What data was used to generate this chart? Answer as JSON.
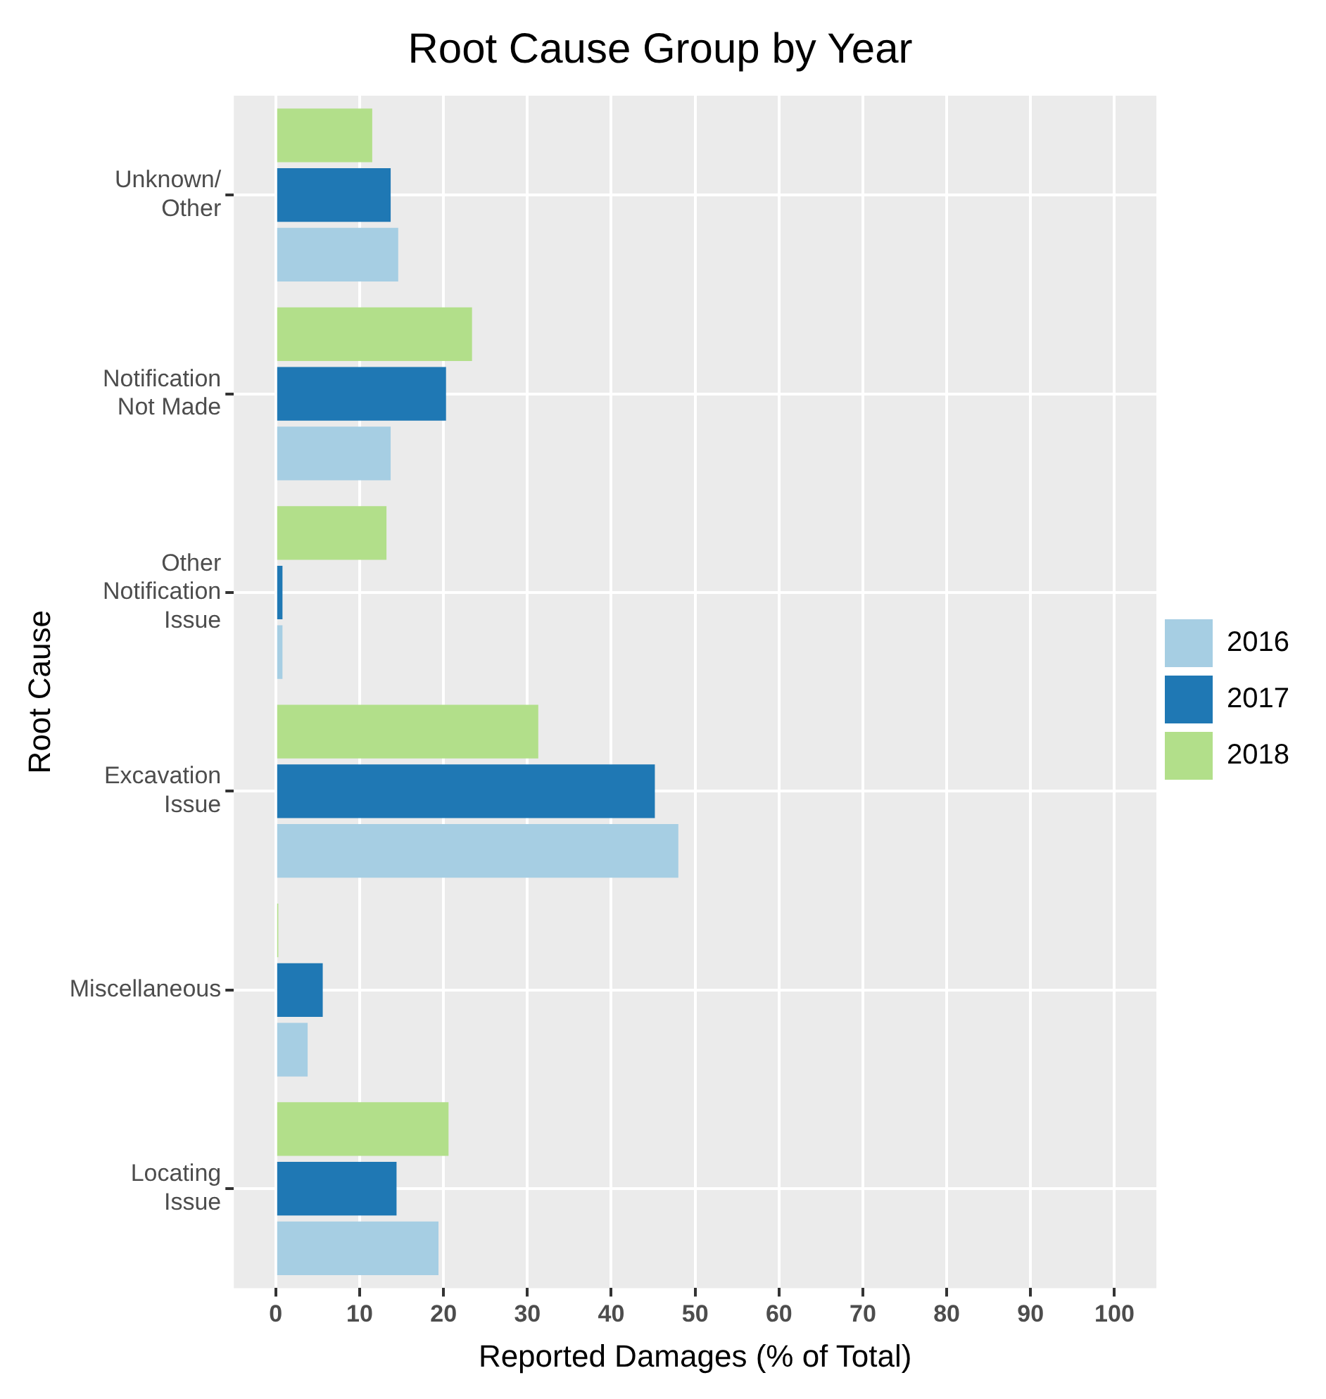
{
  "chart_data": {
    "type": "bar",
    "orientation": "horizontal",
    "title": "Root Cause Group by Year",
    "xlabel": "Reported Damages (% of Total)",
    "ylabel": "Root Cause",
    "categories": [
      "Unknown/ Other",
      "Notification Not Made",
      "Other Notification Issue",
      "Excavation Issue",
      "Miscellaneous",
      "Locating Issue"
    ],
    "series": [
      {
        "name": "2016",
        "color": "#a6cee3",
        "values": [
          14.6,
          13.7,
          0.8,
          48.0,
          3.8,
          19.4
        ]
      },
      {
        "name": "2017",
        "color": "#1f78b4",
        "values": [
          13.7,
          20.3,
          0.8,
          45.2,
          5.6,
          14.4
        ]
      },
      {
        "name": "2018",
        "color": "#b2df8a",
        "values": [
          11.5,
          23.4,
          13.2,
          31.3,
          0.3,
          20.6
        ]
      }
    ],
    "xlim": [
      -5,
      105
    ],
    "xticks": [
      0,
      10,
      20,
      30,
      40,
      50,
      60,
      70,
      80,
      90,
      100
    ],
    "grid": true,
    "legend": "right"
  }
}
